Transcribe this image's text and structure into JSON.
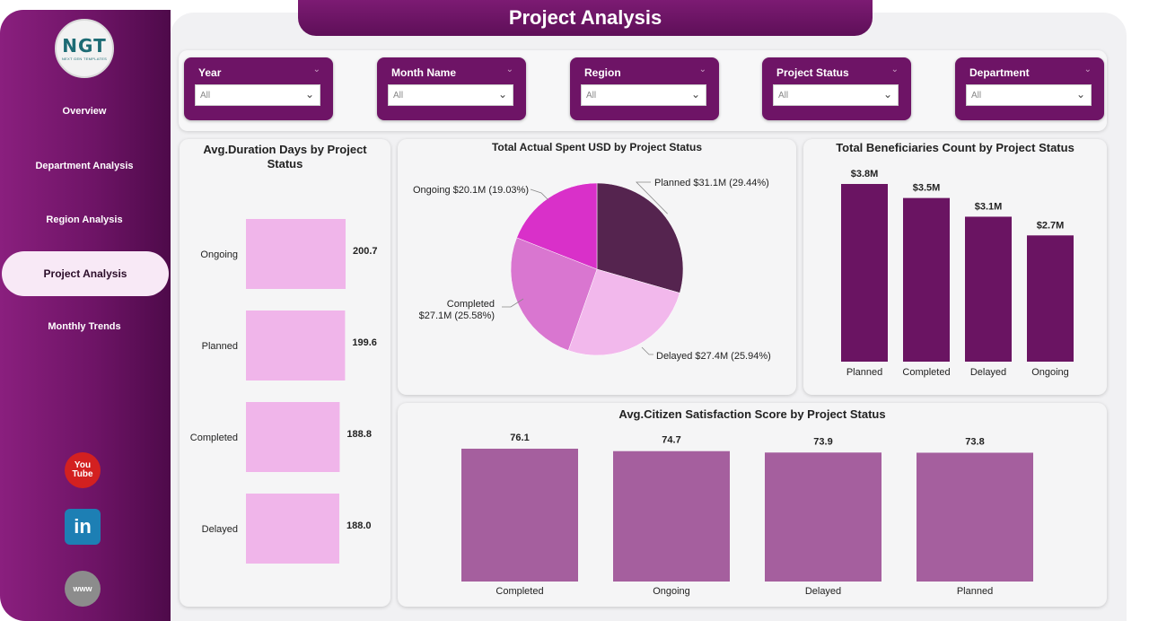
{
  "header": {
    "title": "Project Analysis"
  },
  "logo": {
    "mark": "NGT",
    "subtitle": "NEXT GEN TEMPLATES"
  },
  "sidebar": {
    "items": [
      {
        "label": "Overview"
      },
      {
        "label": "Department Analysis"
      },
      {
        "label": "Region Analysis"
      },
      {
        "label": "Project Analysis"
      },
      {
        "label": "Monthly Trends"
      }
    ],
    "social": {
      "youtube_top": "You",
      "youtube_bottom": "Tube",
      "linkedin": "in",
      "web": "www"
    }
  },
  "filters": [
    {
      "label": "Year",
      "value": "All"
    },
    {
      "label": "Month Name",
      "value": "All"
    },
    {
      "label": "Region",
      "value": "All"
    },
    {
      "label": "Project Status",
      "value": "All"
    },
    {
      "label": "Department",
      "value": "All"
    }
  ],
  "chart_data": [
    {
      "id": "avg_duration",
      "type": "bar",
      "orientation": "horizontal",
      "title": "Avg.Duration Days by Project Status",
      "categories": [
        "Ongoing",
        "Planned",
        "Completed",
        "Delayed"
      ],
      "values": [
        200.7,
        199.6,
        188.8,
        188.0
      ],
      "value_labels": [
        "200.7",
        "199.6",
        "188.8",
        "188.0"
      ],
      "color": "#f0b5ea"
    },
    {
      "id": "actual_spent",
      "type": "pie",
      "title": "Total Actual Spent USD by Project Status",
      "slices": [
        {
          "label": "Planned $31.1M (29.44%)",
          "value": 29.44,
          "color": "#55244f"
        },
        {
          "label": "Delayed $27.4M (25.94%)",
          "value": 25.94,
          "color": "#f2b8ec"
        },
        {
          "label_line1": "Completed",
          "label_line2": "$27.1M (25.58%)",
          "value": 25.58,
          "color": "#d976d0"
        },
        {
          "label": "Ongoing $20.1M (19.03%)",
          "value": 19.03,
          "color": "#d930c9"
        }
      ]
    },
    {
      "id": "beneficiaries",
      "type": "bar",
      "title": "Total Beneficiaries Count by Project Status",
      "categories": [
        "Planned",
        "Completed",
        "Delayed",
        "Ongoing"
      ],
      "values": [
        3.8,
        3.5,
        3.1,
        2.7
      ],
      "value_labels": [
        "$3.8M",
        "$3.5M",
        "$3.1M",
        "$2.7M"
      ],
      "color": "#6a1462"
    },
    {
      "id": "satisfaction",
      "type": "bar",
      "title": "Avg.Citizen Satisfaction Score by Project Status",
      "categories": [
        "Completed",
        "Ongoing",
        "Delayed",
        "Planned"
      ],
      "values": [
        76.1,
        74.7,
        73.9,
        73.8
      ],
      "value_labels": [
        "76.1",
        "74.7",
        "73.9",
        "73.8"
      ],
      "color": "#a55f9e"
    }
  ]
}
